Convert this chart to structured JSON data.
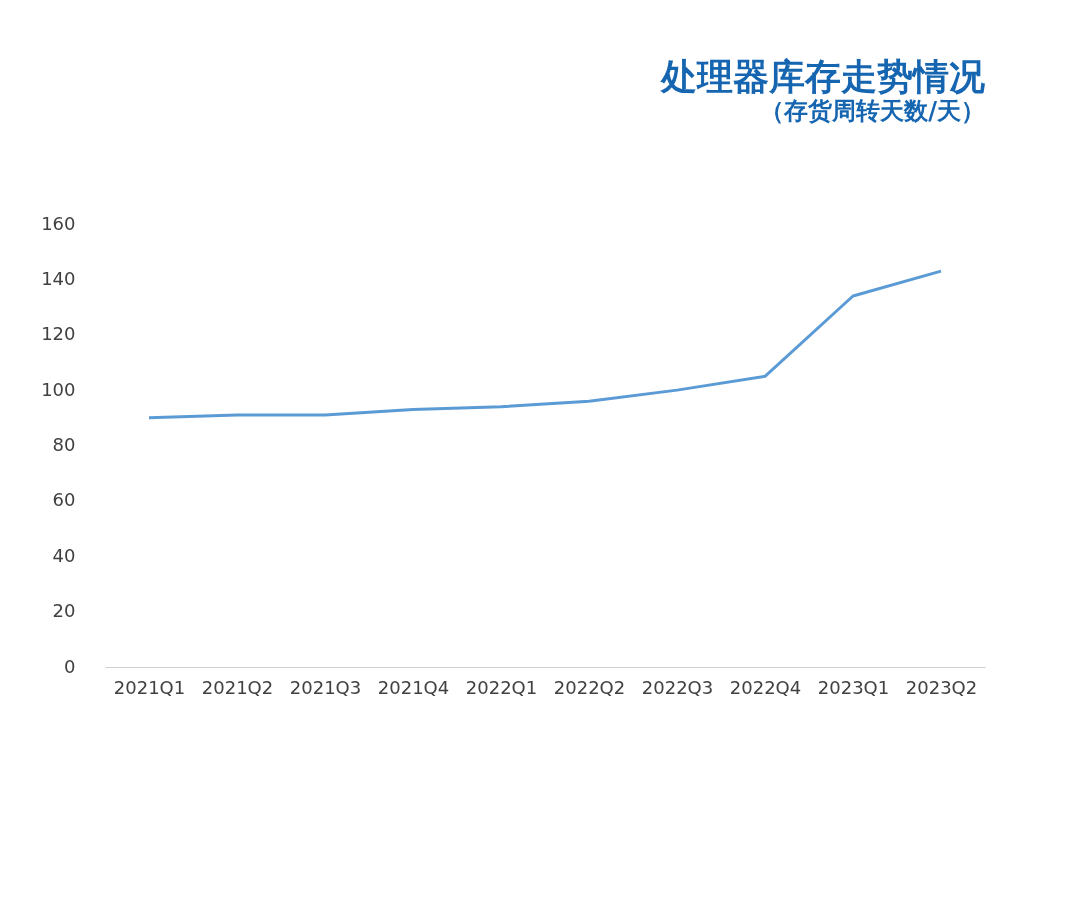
{
  "chart_data": {
    "type": "line",
    "title": "处理器库存走势情况",
    "subtitle": "（存货周转天数/天）",
    "categories": [
      "2021Q1",
      "2021Q2",
      "2021Q3",
      "2021Q4",
      "2022Q1",
      "2022Q2",
      "2022Q3",
      "2022Q4",
      "2023Q1",
      "2023Q2"
    ],
    "series": [
      {
        "color": "#5b9bd5",
        "values": [
          90,
          91,
          91,
          93,
          94,
          96,
          100,
          105,
          134,
          143
        ]
      }
    ],
    "ylim": [
      0,
      160
    ],
    "yticks": [
      0,
      20,
      40,
      60,
      80,
      100,
      120,
      140,
      160
    ],
    "grid": false,
    "legend": false,
    "marker": "none",
    "line_style": "solid"
  }
}
